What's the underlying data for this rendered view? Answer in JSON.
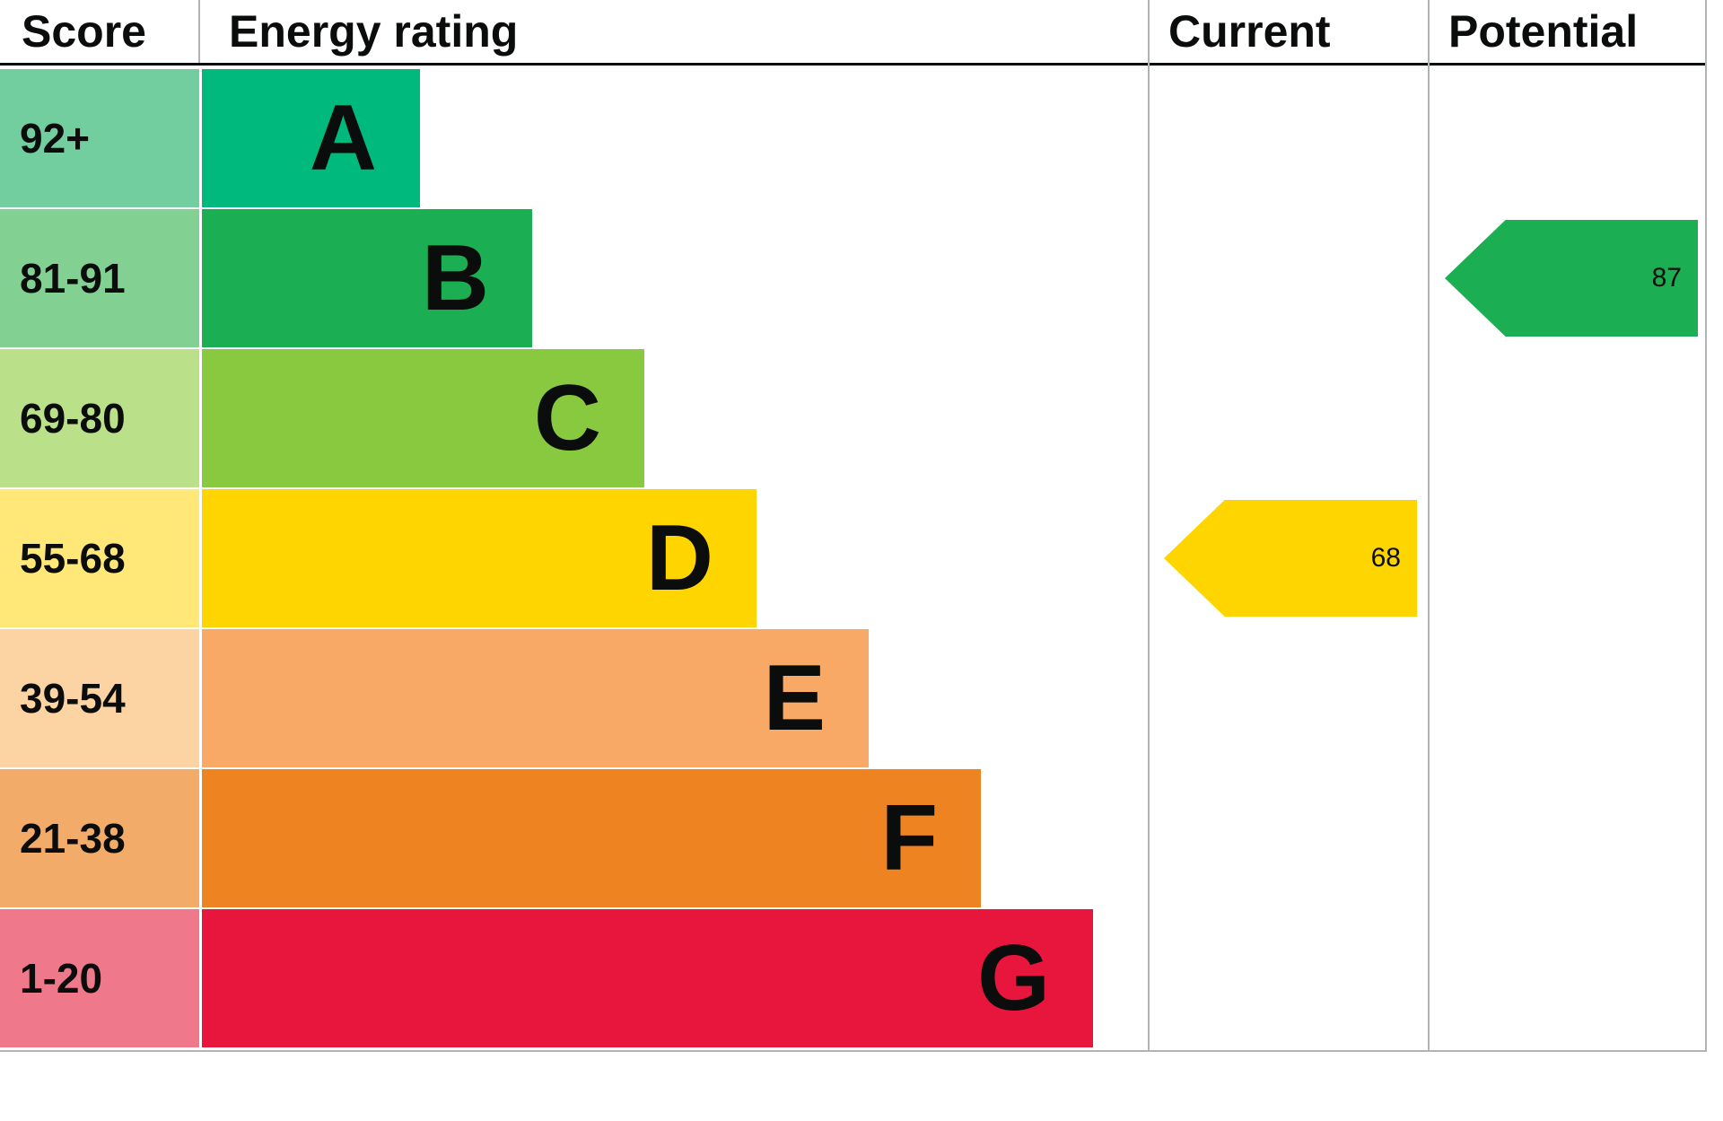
{
  "header": {
    "score_label": "Score",
    "rating_label": "Energy rating",
    "current_label": "Current",
    "potential_label": "Potential"
  },
  "chart_data": {
    "type": "bar",
    "description": "EPC energy efficiency rating chart with score bands A-G and current/potential rating arrows",
    "bands": [
      {
        "score_range": "92+",
        "letter": "A",
        "color": "#00b97c",
        "tint": "#72cd9f"
      },
      {
        "score_range": "81-91",
        "letter": "B",
        "color": "#1cae53",
        "tint": "#82d193"
      },
      {
        "score_range": "69-80",
        "letter": "C",
        "color": "#89c940",
        "tint": "#bae189"
      },
      {
        "score_range": "55-68",
        "letter": "D",
        "color": "#ffd500",
        "tint": "#ffe877"
      },
      {
        "score_range": "39-54",
        "letter": "E",
        "color": "#f9a966",
        "tint": "#fcd3a2"
      },
      {
        "score_range": "21-38",
        "letter": "F",
        "color": "#ee8421",
        "tint": "#f3ab6a"
      },
      {
        "score_range": "1-20",
        "letter": "G",
        "color": "#e8153d",
        "tint": "#f0788b"
      }
    ],
    "current": {
      "value": 68,
      "band": "D",
      "arrow_color": "#ffd500"
    },
    "potential": {
      "value": 87,
      "band": "B",
      "arrow_color": "#1cae53"
    },
    "legend_position": "none",
    "grid": false
  }
}
